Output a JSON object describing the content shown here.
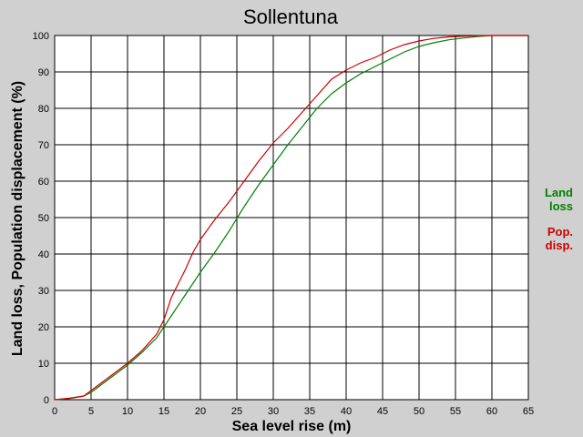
{
  "chart_data": {
    "type": "line",
    "title": "Sollentuna",
    "xlabel": "Sea level rise (m)",
    "ylabel": "Land loss, Population displacement (%)",
    "xlim": [
      0,
      65
    ],
    "ylim": [
      0,
      100
    ],
    "xticks": [
      0,
      5,
      10,
      15,
      20,
      25,
      30,
      35,
      40,
      45,
      50,
      55,
      60,
      65
    ],
    "yticks": [
      0,
      10,
      20,
      30,
      40,
      50,
      60,
      70,
      80,
      90,
      100
    ],
    "grid": true,
    "legend_position": "right",
    "series": [
      {
        "name_lines": [
          "Land",
          "loss"
        ],
        "color": "#008000",
        "x": [
          0,
          2,
          4,
          5,
          6,
          8,
          10,
          12,
          14,
          16,
          18,
          20,
          22,
          24,
          26,
          28,
          30,
          32,
          34,
          36,
          38,
          40,
          42,
          44,
          46,
          48,
          50,
          52,
          54,
          56,
          58,
          60,
          62,
          65
        ],
        "y": [
          0,
          0.3,
          1,
          2,
          3.5,
          6.5,
          9.5,
          13,
          17,
          23,
          29,
          35,
          40.5,
          46.5,
          53,
          59,
          64.5,
          70,
          75,
          80,
          84,
          87,
          89.5,
          91.5,
          93.5,
          95.5,
          97,
          98,
          98.8,
          99.3,
          99.7,
          100,
          100,
          100
        ]
      },
      {
        "name_lines": [
          "Pop.",
          "disp."
        ],
        "color": "#cc0000",
        "x": [
          0,
          2,
          4,
          5,
          6,
          8,
          10,
          12,
          14,
          15,
          16,
          18,
          19,
          20,
          22,
          24,
          26,
          28,
          30,
          32,
          34,
          36,
          38,
          40,
          42,
          44,
          46,
          48,
          50,
          52,
          54,
          56,
          58,
          60,
          62,
          65
        ],
        "y": [
          0,
          0.4,
          1,
          2.5,
          4,
          7,
          10,
          13.5,
          18,
          22,
          28,
          36,
          40.5,
          44,
          49.5,
          54.5,
          60,
          65.5,
          70.5,
          74.5,
          79,
          83.5,
          88,
          90.5,
          92.5,
          94,
          96,
          97.5,
          98.5,
          99.2,
          99.6,
          99.8,
          99.9,
          100,
          100,
          100
        ]
      }
    ]
  }
}
